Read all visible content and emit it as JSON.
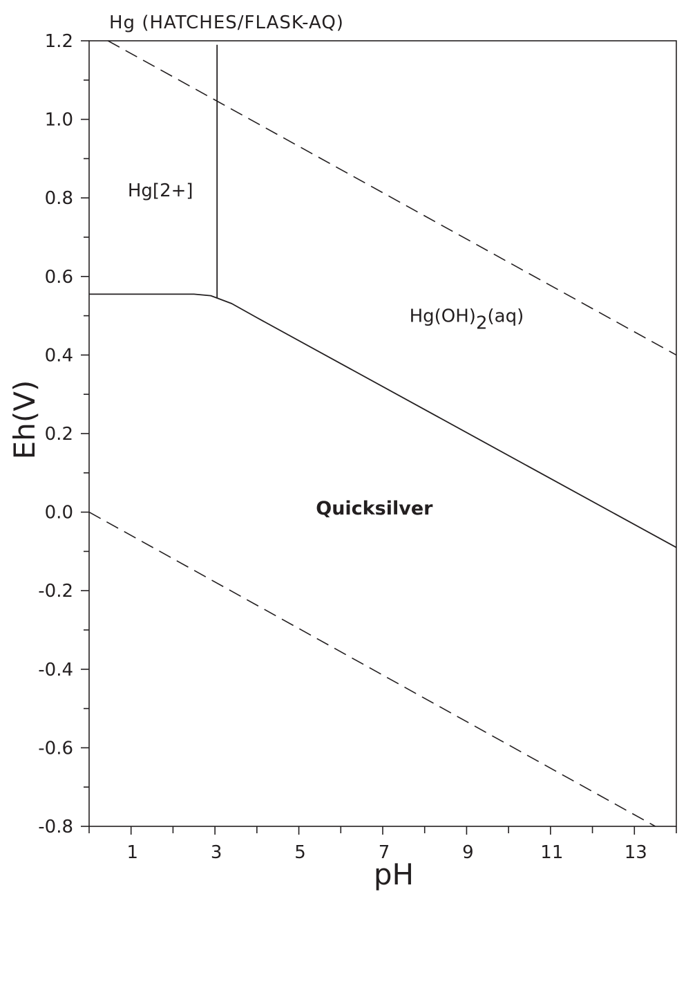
{
  "chart_data": {
    "type": "line",
    "title": "Hg (HATCHES/FLASK-AQ)",
    "xlabel": "pH",
    "ylabel": "Eh(V)",
    "xlim": [
      0,
      14
    ],
    "ylim": [
      -0.8,
      1.2
    ],
    "x_ticks": [
      1,
      3,
      5,
      7,
      9,
      11,
      13
    ],
    "x_tick_labels": [
      "1",
      "3",
      "5",
      "7",
      "9",
      "11",
      "13"
    ],
    "y_ticks": [
      1.2,
      1.0,
      0.8,
      0.6,
      0.4,
      0.2,
      0.0,
      -0.2,
      -0.4,
      -0.6,
      -0.8
    ],
    "y_tick_labels": [
      "1.2",
      "1.0",
      "0.8",
      "0.6",
      "0.4",
      "0.2",
      "0.0",
      "-0.2",
      "-0.4",
      "-0.6",
      "-0.8"
    ],
    "grid": false,
    "line_color": "#231f20",
    "series": [
      {
        "style": "dashed",
        "x": [
          0.45,
          14.0
        ],
        "y": [
          1.2,
          0.4
        ]
      },
      {
        "style": "dashed",
        "x": [
          0.0,
          13.5
        ],
        "y": [
          0.0,
          -0.8
        ]
      },
      {
        "style": "solid",
        "x": [
          3.05,
          3.05
        ],
        "y": [
          1.19,
          0.545
        ]
      },
      {
        "style": "solid",
        "x": [
          0.0,
          2.5,
          2.9,
          3.05,
          3.4,
          4.0,
          14.0
        ],
        "y": [
          0.555,
          0.555,
          0.551,
          0.545,
          0.531,
          0.495,
          -0.09
        ]
      }
    ],
    "regions": [
      {
        "label": "Hg[2+]",
        "x": 1.7,
        "y": 0.82
      },
      {
        "label": "Hg(OH)",
        "subscript": "2",
        "suffix": "(aq)",
        "x": 9.0,
        "y": 0.5
      },
      {
        "label": "Quicksilver",
        "x": 6.8,
        "y": 0.01,
        "bold": true
      }
    ]
  }
}
